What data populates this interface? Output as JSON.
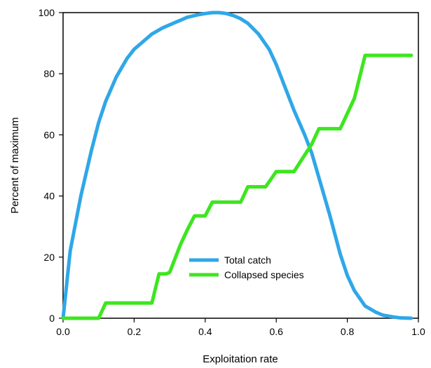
{
  "chart_data": {
    "type": "line",
    "xlabel": "Exploitation rate",
    "ylabel": "Percent of maximum",
    "xlim": [
      0,
      1.0
    ],
    "ylim": [
      0,
      100
    ],
    "x_ticks": [
      "0.0",
      "0.2",
      "0.4",
      "0.6",
      "0.8",
      "1.0"
    ],
    "y_ticks": [
      "0",
      "20",
      "40",
      "60",
      "80",
      "100"
    ],
    "grid": false,
    "legend_position": "inside-bottom-center",
    "series": [
      {
        "name": "Total catch",
        "color": "#2fa7e8",
        "x": [
          0.0,
          0.02,
          0.05,
          0.08,
          0.1,
          0.12,
          0.15,
          0.18,
          0.2,
          0.22,
          0.25,
          0.28,
          0.3,
          0.33,
          0.35,
          0.38,
          0.4,
          0.42,
          0.44,
          0.46,
          0.48,
          0.5,
          0.52,
          0.55,
          0.58,
          0.6,
          0.62,
          0.65,
          0.68,
          0.7,
          0.72,
          0.75,
          0.78,
          0.8,
          0.82,
          0.85,
          0.88,
          0.9,
          0.93,
          0.95,
          0.98
        ],
        "y": [
          0,
          22,
          40,
          55,
          64,
          71,
          79,
          85,
          88,
          90,
          93,
          95,
          96,
          97.5,
          98.5,
          99.3,
          99.7,
          100,
          100,
          99.7,
          99,
          98,
          96.5,
          93,
          88,
          83,
          77,
          68,
          60,
          54,
          46,
          34,
          21,
          14,
          9,
          4,
          2,
          1,
          0.4,
          0.1,
          0
        ]
      },
      {
        "name": "Collapsed species",
        "color": "#3de61f",
        "x": [
          0.0,
          0.1,
          0.12,
          0.25,
          0.27,
          0.29,
          0.3,
          0.33,
          0.35,
          0.37,
          0.4,
          0.42,
          0.5,
          0.52,
          0.57,
          0.6,
          0.65,
          0.7,
          0.72,
          0.78,
          0.82,
          0.85,
          0.98
        ],
        "y": [
          0,
          0,
          5,
          5,
          14.5,
          14.5,
          15,
          24,
          29,
          33.5,
          33.5,
          38,
          38,
          43,
          43,
          48,
          48,
          57,
          62,
          62,
          72,
          86,
          86
        ]
      }
    ]
  }
}
